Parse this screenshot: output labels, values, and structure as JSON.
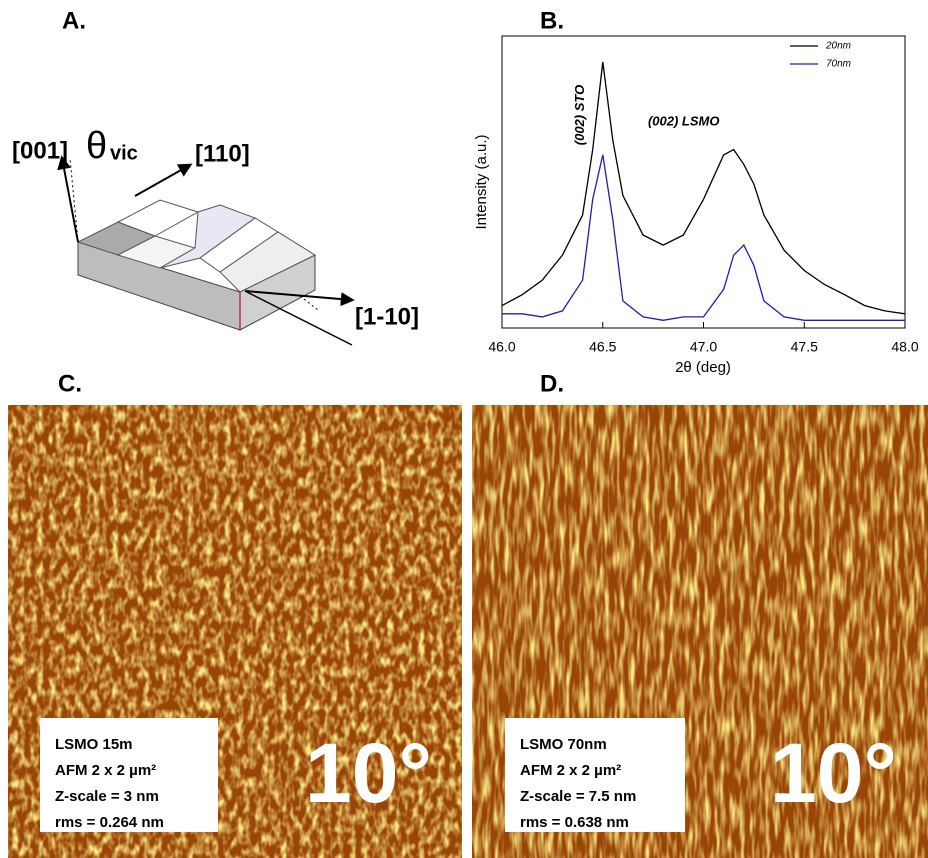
{
  "panel_labels": {
    "a": "A.",
    "b": "B.",
    "c": "C.",
    "d": "D."
  },
  "diagram": {
    "axis_001": "[001]",
    "theta": "θ",
    "theta_sub": "vic",
    "axis_110": "[110]",
    "axis_1_10": "[1-10]"
  },
  "chart_data": {
    "type": "line",
    "xlabel": "2θ (deg)",
    "ylabel": "Intensity (a.u.)",
    "x": [
      46.0,
      46.1,
      46.2,
      46.3,
      46.4,
      46.45,
      46.5,
      46.55,
      46.6,
      46.7,
      46.8,
      46.9,
      47.0,
      47.1,
      47.15,
      47.2,
      47.25,
      47.3,
      47.4,
      47.5,
      47.6,
      47.7,
      47.8,
      47.9,
      48.0
    ],
    "series": [
      {
        "name": "20nm",
        "color": "#000000",
        "values": [
          1.7,
          2.2,
          3.1,
          5.6,
          14.5,
          68,
          540,
          85,
          23,
          9,
          7.1,
          9,
          21,
          60,
          68,
          48,
          30,
          14.5,
          6.3,
          3.9,
          2.8,
          2.2,
          1.7,
          1.5,
          1.4
        ]
      },
      {
        "name": "70nm",
        "color": "#1f1fb4",
        "values": [
          1.4,
          1.4,
          1.3,
          1.5,
          3.1,
          21,
          60,
          13,
          1.9,
          1.3,
          1.2,
          1.3,
          1.3,
          2.5,
          5.6,
          7.1,
          4.4,
          1.9,
          1.3,
          1.2,
          1.2,
          1.2,
          1.2,
          1.2,
          1.2
        ]
      }
    ],
    "xlim": [
      46.0,
      48.0
    ],
    "xticks": [
      {
        "value": 46.0,
        "label": "46.0"
      },
      {
        "value": 46.5,
        "label": "46.5"
      },
      {
        "value": 47.0,
        "label": "47.0"
      },
      {
        "value": 47.5,
        "label": "47.5"
      },
      {
        "value": 48.0,
        "label": "48.0"
      }
    ],
    "ylim": [
      1,
      1000
    ],
    "yscale": "log",
    "legend": "upper right",
    "annotations": [
      {
        "text": "(002) STO",
        "x": 46.5
      },
      {
        "text": "(002) LSMO",
        "x": 47.15
      }
    ]
  },
  "afm": [
    {
      "lines": [
        "LSMO 15m",
        "AFM 2 x 2 µm²",
        "Z-scale = 3 nm",
        "rms = 0.264 nm"
      ],
      "angle": "10°"
    },
    {
      "lines": [
        "LSMO 70nm",
        "AFM 2 x 2 µm²",
        "Z-scale = 7.5 nm",
        "rms = 0.638 nm"
      ],
      "angle": "10°"
    }
  ]
}
